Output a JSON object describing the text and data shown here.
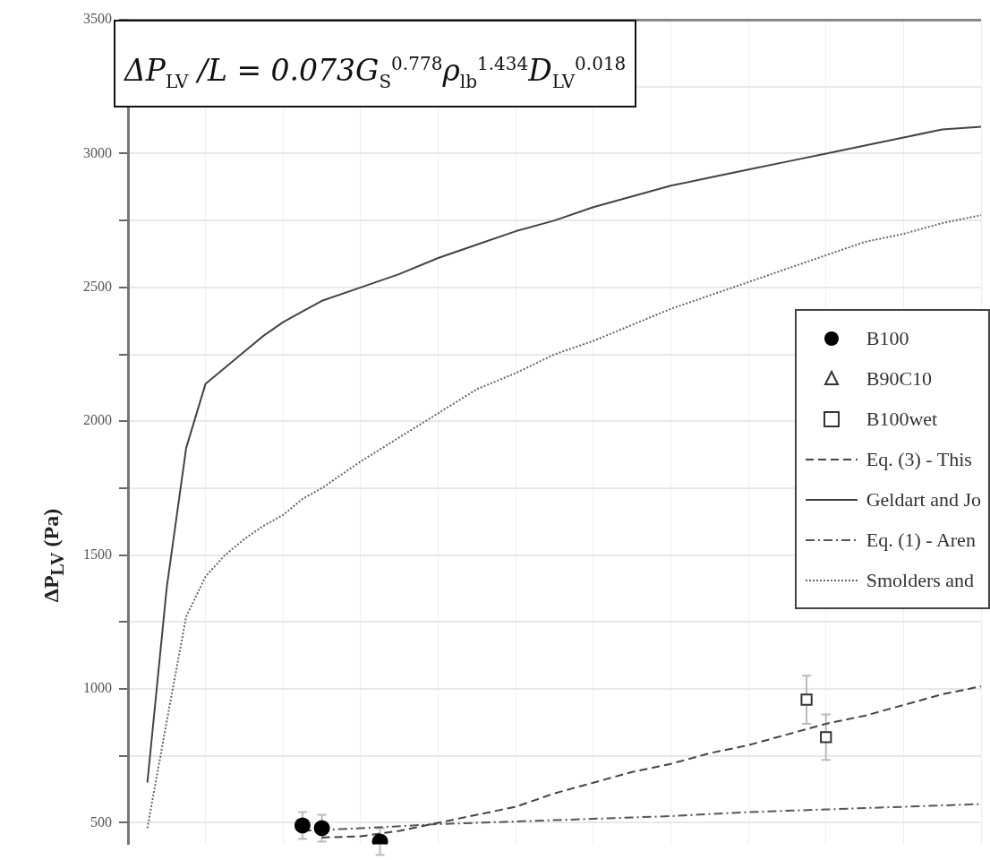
{
  "chart_data": {
    "type": "line",
    "ylabel": "ΔP$_{LV}$ (Pa)",
    "annotations": [
      "ΔP$_{LV}$ /L = 0.073G$_{S}$$^{0.778}$ρ$_{lb}$$^{1.434}$D$_{LV}$$^{0.018}$"
    ],
    "categories": [
      null,
      null,
      null,
      null,
      null,
      null,
      null,
      null,
      null,
      null,
      null,
      null,
      null,
      null,
      null,
      null,
      null,
      null,
      null,
      null,
      null,
      null,
      null,
      null,
      null,
      null,
      null,
      null,
      null,
      null,
      null,
      null,
      null,
      null,
      null,
      null,
      null,
      null,
      null,
      null,
      null,
      null,
      null,
      null,
      null
    ],
    "series": [
      {
        "name": "B100",
        "type": "scatter",
        "marker": "circle",
        "color": "#000000",
        "values": [
          null,
          null,
          null,
          null,
          null,
          null,
          null,
          null,
          null,
          490,
          480,
          null,
          null,
          430,
          null,
          null,
          null,
          null,
          null,
          null,
          null,
          null,
          null,
          null,
          null,
          null,
          null,
          null,
          null,
          null,
          null,
          null,
          null,
          null,
          null,
          null,
          null,
          null,
          null,
          null,
          null,
          null,
          null,
          null,
          null
        ],
        "errors": [
          null,
          null,
          null,
          null,
          null,
          null,
          null,
          null,
          null,
          50,
          50,
          null,
          null,
          50,
          null,
          null,
          null,
          null,
          null,
          null,
          null,
          null,
          null,
          null,
          null,
          null,
          null,
          null,
          null,
          null,
          null,
          null,
          null,
          null,
          null,
          null,
          null,
          null,
          null,
          null,
          null,
          null,
          null,
          null,
          null
        ]
      },
      {
        "name": "B90C10",
        "type": "scatter",
        "marker": "triangle",
        "color": "#333333",
        "values": [
          null,
          null,
          null,
          null,
          null,
          null,
          null,
          null,
          null,
          null,
          null,
          null,
          null,
          null,
          null,
          null,
          null,
          null,
          null,
          null,
          null,
          null,
          null,
          null,
          null,
          null,
          null,
          null,
          null,
          null,
          null,
          null,
          null,
          null,
          null,
          null,
          null,
          null,
          null,
          null,
          null,
          null,
          null,
          null,
          null
        ]
      },
      {
        "name": "B100wet",
        "type": "scatter",
        "marker": "square",
        "color": "#333333",
        "values": [
          null,
          null,
          null,
          null,
          null,
          null,
          null,
          null,
          null,
          null,
          null,
          null,
          null,
          null,
          null,
          null,
          null,
          null,
          null,
          null,
          null,
          null,
          null,
          null,
          null,
          null,
          null,
          null,
          null,
          null,
          null,
          null,
          null,
          null,
          null,
          960,
          820,
          null,
          null,
          null,
          null,
          null,
          null,
          null,
          null
        ],
        "errors": [
          null,
          null,
          null,
          null,
          null,
          null,
          null,
          null,
          null,
          null,
          null,
          null,
          null,
          null,
          null,
          null,
          null,
          null,
          null,
          null,
          null,
          null,
          null,
          null,
          null,
          null,
          null,
          null,
          null,
          null,
          null,
          null,
          null,
          null,
          null,
          90,
          85,
          null,
          null,
          null,
          null,
          null,
          null,
          null,
          null
        ]
      },
      {
        "name": "Eq. (3) - This",
        "type": "line",
        "marker": "none",
        "line_style": "dashed",
        "color": "#444444",
        "values": [
          null,
          null,
          null,
          null,
          null,
          null,
          null,
          null,
          null,
          null,
          445,
          null,
          450,
          null,
          470,
          null,
          500,
          null,
          530,
          null,
          560,
          null,
          610,
          null,
          650,
          null,
          690,
          null,
          720,
          null,
          760,
          null,
          790,
          null,
          830,
          null,
          870,
          null,
          900,
          null,
          940,
          null,
          980,
          null,
          1010
        ]
      },
      {
        "name": "Geldart and Jo",
        "type": "line",
        "marker": "none",
        "line_style": "solid",
        "color": "#444444",
        "values": [
          null,
          650,
          1380,
          1900,
          2140,
          2200,
          2260,
          2320,
          2370,
          2410,
          2450,
          null,
          2500,
          null,
          2550,
          null,
          2610,
          null,
          2660,
          null,
          2710,
          null,
          2750,
          null,
          2800,
          null,
          2840,
          null,
          2880,
          null,
          2910,
          null,
          2940,
          null,
          2970,
          null,
          3000,
          null,
          3030,
          null,
          3060,
          null,
          3090,
          null,
          3100
        ]
      },
      {
        "name": "Eq. (1) - Aren",
        "type": "line",
        "marker": "none",
        "line_style": "dashdot",
        "color": "#555555",
        "values": [
          null,
          null,
          null,
          null,
          null,
          null,
          null,
          null,
          null,
          470,
          null,
          null,
          480,
          null,
          null,
          null,
          495,
          null,
          null,
          null,
          505,
          null,
          null,
          null,
          515,
          null,
          null,
          null,
          525,
          null,
          null,
          null,
          540,
          null,
          null,
          null,
          550,
          null,
          null,
          null,
          560,
          null,
          null,
          null,
          570
        ]
      },
      {
        "name": "Smolders and",
        "type": "line",
        "marker": "none",
        "line_style": "dotted",
        "color": "#666666",
        "values": [
          null,
          480,
          880,
          1270,
          1420,
          1500,
          1560,
          1610,
          1650,
          1710,
          1750,
          null,
          1850,
          null,
          1940,
          null,
          2030,
          null,
          2120,
          null,
          2180,
          null,
          2250,
          null,
          2300,
          null,
          2360,
          null,
          2420,
          null,
          2470,
          null,
          2520,
          null,
          2570,
          null,
          2620,
          null,
          2670,
          null,
          2700,
          null,
          2740,
          null,
          2770
        ]
      }
    ],
    "ylim": [
      420,
      3500
    ],
    "yticks": [
      500,
      {
        "value": 750,
        "label": null
      },
      1000,
      {
        "value": 1250,
        "label": null
      },
      1500,
      {
        "value": 1750,
        "label": null
      },
      2000,
      {
        "value": 2250,
        "label": null
      },
      2500,
      {
        "value": 2750,
        "label": null
      },
      3000,
      {
        "value": 3250,
        "label": null
      },
      3500
    ],
    "grid": true,
    "legend": "right",
    "tick_labels": "y"
  }
}
